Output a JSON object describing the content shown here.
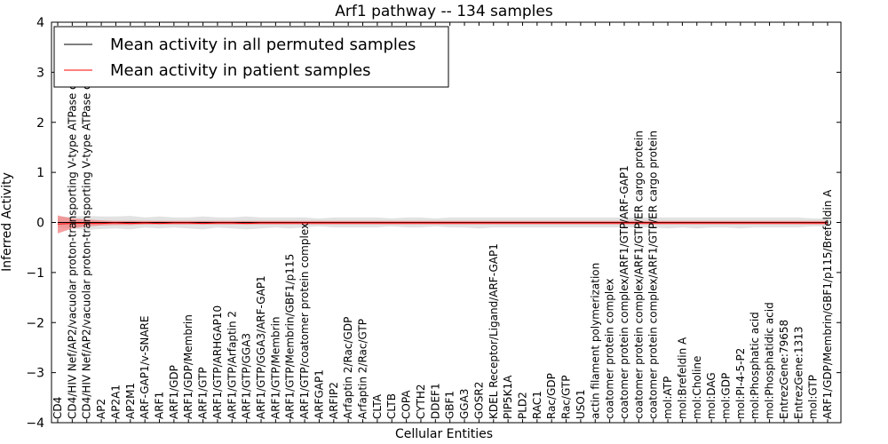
{
  "chart_data": {
    "type": "line",
    "title": "Arf1 pathway -- 134 samples",
    "xlabel": "Cellular Entities",
    "ylabel": "Inferred Activity",
    "ylim": [
      -4,
      4
    ],
    "yticks": [
      "4",
      "3",
      "2",
      "1",
      "0",
      "−1",
      "−2",
      "−3",
      "−4"
    ],
    "grid": false,
    "legend_position": "top-left",
    "categories": [
      "CD4",
      "CD4/HIV Nef/AP2/vacuolar proton-transporting V-type ATPase complex",
      "CD4/HIV Nef/AP2/vacuolar proton-transporting V-type ATPase complex",
      "AP2",
      "AP2A1",
      "AP2M1",
      "ARF-GAP1/v-SNARE",
      "ARF1",
      "ARF1/GDP",
      "ARF1/GDP/Membrin",
      "ARF1/GTP",
      "ARF1/GTP/ARHGAP10",
      "ARF1/GTP/Arfaptin 2",
      "ARF1/GTP/GGA3",
      "ARF1/GTP/GGA3/ARF-GAP1",
      "ARF1/GTP/Membrin",
      "ARF1/GTP/Membrin/GBF1/p115",
      "ARF1/GTP/coatomer protein complex",
      "ARFGAP1",
      "ARFIP2",
      "Arfaptin 2/Rac/GDP",
      "Arfaptin 2/Rac/GTP",
      "CLTA",
      "CLTB",
      "COPA",
      "CYTH2",
      "DDEF1",
      "GBF1",
      "GGA3",
      "GOSR2",
      "KDEL Receptor/Ligand/ARF-GAP1",
      "PIP5K1A",
      "PLD2",
      "RAC1",
      "Rac/GDP",
      "Rac/GTP",
      "USO1",
      "actin filament polymerization",
      "coatomer protein complex",
      "coatomer protein complex/ARF1/GTP/ARF-GAP1",
      "coatomer protein complex/ARF1/GTP/ER cargo protein",
      "coatomer protein complex/ARF1/GTP/ER cargo protein",
      "mol:ATP",
      "mol:Brefeldin A",
      "mol:Choline",
      "mol:DAG",
      "mol:GDP",
      "mol:PI-4-5-P2",
      "mol:Phosphatic acid",
      "mol:Phosphatidic acid",
      "EntrezGene:79658",
      "EntrezGene:1313",
      "mol:GTP",
      "ARF1/GDP/Membrin/GBF1/p115/Brefeldin A"
    ],
    "series": [
      {
        "name": "Mean activity in all permuted samples",
        "color": "#000000",
        "values": [
          0,
          0,
          0,
          0,
          0,
          0,
          0,
          0,
          0,
          0,
          0,
          0,
          0,
          0,
          0,
          0,
          0,
          0,
          0,
          0,
          0,
          0,
          0,
          0,
          0,
          0,
          0,
          0,
          0,
          0,
          0,
          0,
          0,
          0,
          0,
          0,
          0,
          0,
          0,
          0,
          0,
          0,
          0,
          0,
          0,
          0,
          0,
          0,
          0,
          0,
          0,
          0,
          0,
          0
        ],
        "band_lower": [
          -0.1,
          -0.12,
          -0.15,
          -0.13,
          -0.12,
          -0.14,
          -0.1,
          -0.12,
          -0.1,
          -0.12,
          -0.14,
          -0.1,
          -0.12,
          -0.14,
          -0.12,
          -0.1,
          -0.12,
          -0.1,
          -0.08,
          -0.1,
          -0.1,
          -0.1,
          -0.1,
          -0.08,
          -0.1,
          -0.1,
          -0.08,
          -0.1,
          -0.1,
          -0.12,
          -0.1,
          -0.1,
          -0.1,
          -0.1,
          -0.1,
          -0.1,
          -0.1,
          -0.1,
          -0.1,
          -0.1,
          -0.1,
          -0.1,
          -0.12,
          -0.1,
          -0.12,
          -0.1,
          -0.1,
          -0.12,
          -0.1,
          -0.1,
          -0.1,
          -0.1,
          -0.08,
          -0.08
        ],
        "band_upper": [
          0.1,
          0.12,
          0.13,
          0.12,
          0.12,
          0.13,
          0.1,
          0.12,
          0.1,
          0.1,
          0.12,
          0.1,
          0.1,
          0.12,
          0.1,
          0.1,
          0.1,
          0.1,
          0.08,
          0.1,
          0.1,
          0.1,
          0.1,
          0.08,
          0.1,
          0.1,
          0.08,
          0.1,
          0.1,
          0.1,
          0.1,
          0.1,
          0.1,
          0.1,
          0.1,
          0.1,
          0.1,
          0.1,
          0.1,
          0.1,
          0.1,
          0.1,
          0.1,
          0.1,
          0.1,
          0.1,
          0.1,
          0.1,
          0.1,
          0.1,
          0.1,
          0.1,
          0.08,
          0.08
        ]
      },
      {
        "name": "Mean activity in patient samples",
        "color": "#ff0000",
        "values": [
          -0.03,
          -0.02,
          -0.02,
          -0.02,
          -0.01,
          -0.02,
          -0.01,
          -0.02,
          -0.01,
          -0.01,
          -0.02,
          -0.01,
          -0.01,
          -0.02,
          -0.01,
          -0.01,
          -0.01,
          -0.01,
          -0.01,
          -0.01,
          -0.01,
          -0.01,
          -0.01,
          -0.01,
          -0.01,
          -0.01,
          -0.01,
          -0.01,
          -0.01,
          -0.01,
          -0.01,
          -0.01,
          -0.01,
          -0.01,
          -0.01,
          -0.01,
          -0.01,
          -0.01,
          -0.01,
          -0.01,
          -0.01,
          -0.01,
          -0.01,
          -0.01,
          -0.01,
          -0.01,
          -0.01,
          -0.01,
          -0.01,
          -0.01,
          -0.01,
          -0.01,
          -0.01,
          -0.01
        ],
        "band_lower": [
          -0.22,
          -0.12,
          -0.08,
          -0.06,
          -0.05,
          -0.05,
          -0.04,
          -0.04,
          -0.04,
          -0.04,
          -0.04,
          -0.04,
          -0.04,
          -0.04,
          -0.04,
          -0.04,
          -0.04,
          -0.04,
          -0.04,
          -0.04,
          -0.04,
          -0.04,
          -0.04,
          -0.04,
          -0.04,
          -0.04,
          -0.04,
          -0.04,
          -0.04,
          -0.04,
          -0.04,
          -0.04,
          -0.04,
          -0.04,
          -0.04,
          -0.04,
          -0.04,
          -0.04,
          -0.04,
          -0.04,
          -0.04,
          -0.04,
          -0.04,
          -0.04,
          -0.04,
          -0.04,
          -0.04,
          -0.04,
          -0.04,
          -0.04,
          -0.04,
          -0.04,
          -0.04,
          -0.04
        ],
        "band_upper": [
          0.14,
          0.08,
          0.06,
          0.04,
          0.03,
          0.03,
          0.03,
          0.03,
          0.03,
          0.03,
          0.03,
          0.03,
          0.03,
          0.03,
          0.03,
          0.03,
          0.03,
          0.03,
          0.03,
          0.03,
          0.03,
          0.03,
          0.03,
          0.03,
          0.03,
          0.03,
          0.03,
          0.03,
          0.03,
          0.03,
          0.03,
          0.03,
          0.03,
          0.03,
          0.03,
          0.03,
          0.03,
          0.03,
          0.03,
          0.03,
          0.03,
          0.03,
          0.03,
          0.03,
          0.03,
          0.03,
          0.03,
          0.03,
          0.03,
          0.03,
          0.03,
          0.03,
          0.03,
          0.03
        ]
      }
    ],
    "colors": {
      "permuted_band": "#d3d3d3",
      "patient_band": "#f08080"
    }
  }
}
